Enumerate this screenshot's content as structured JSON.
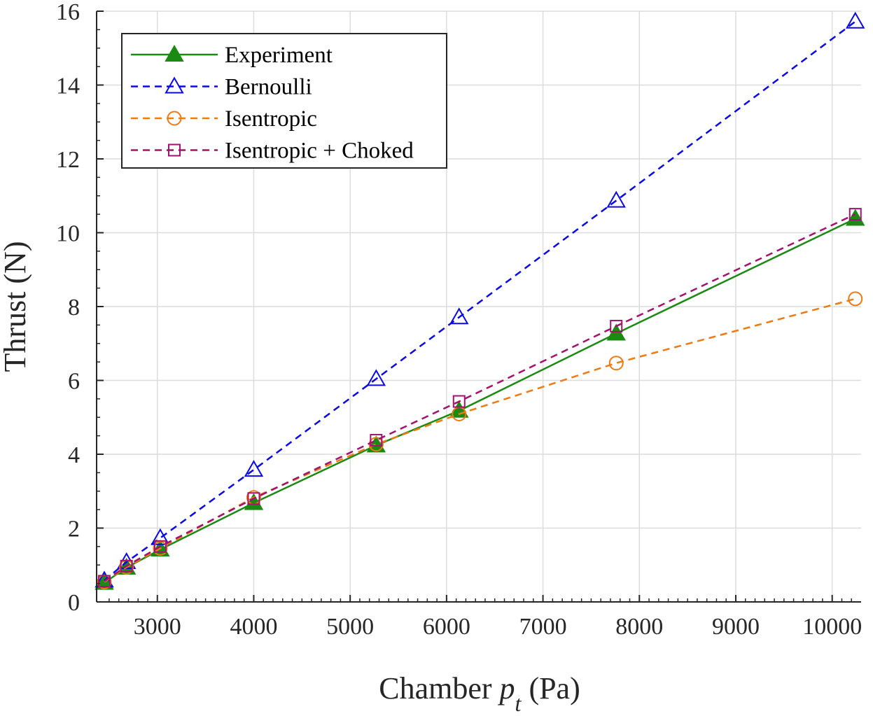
{
  "chart_data": {
    "type": "line",
    "xlabel": {
      "main": "Chamber ",
      "var": "p",
      "sub": "t",
      "unit": " (Pa)"
    },
    "ylabel": "Thrust (N)",
    "xlim": [
      2370,
      10300
    ],
    "ylim": [
      0,
      16
    ],
    "x_ticks": [
      3000,
      4000,
      5000,
      6000,
      7000,
      8000,
      9000,
      10000
    ],
    "y_ticks": [
      0,
      2,
      4,
      6,
      8,
      10,
      12,
      14,
      16
    ],
    "grid": true,
    "legend_position": "top-left",
    "x": [
      2450,
      2680,
      3030,
      4000,
      5270,
      6130,
      7760,
      10240
    ],
    "series": [
      {
        "name": "Experiment",
        "color": "#1b8a12",
        "dash": "solid",
        "marker": "filled-triangle",
        "values": [
          0.52,
          0.93,
          1.42,
          2.68,
          4.24,
          5.18,
          7.27,
          10.38
        ]
      },
      {
        "name": "Bernoulli",
        "color": "#0a0ae6",
        "dash": "dashed",
        "marker": "open-triangle",
        "values": [
          0.58,
          1.08,
          1.73,
          3.58,
          6.04,
          7.71,
          10.87,
          15.72
        ]
      },
      {
        "name": "Isentropic",
        "color": "#ee7a12",
        "dash": "dashed",
        "marker": "open-circle",
        "values": [
          0.54,
          0.94,
          1.45,
          2.83,
          4.27,
          5.09,
          6.47,
          8.21
        ]
      },
      {
        "name": "Isentropic + Choked",
        "color": "#a3126e",
        "dash": "dashed",
        "marker": "open-square",
        "values": [
          0.56,
          0.97,
          1.5,
          2.8,
          4.38,
          5.43,
          7.47,
          10.5
        ]
      }
    ]
  }
}
